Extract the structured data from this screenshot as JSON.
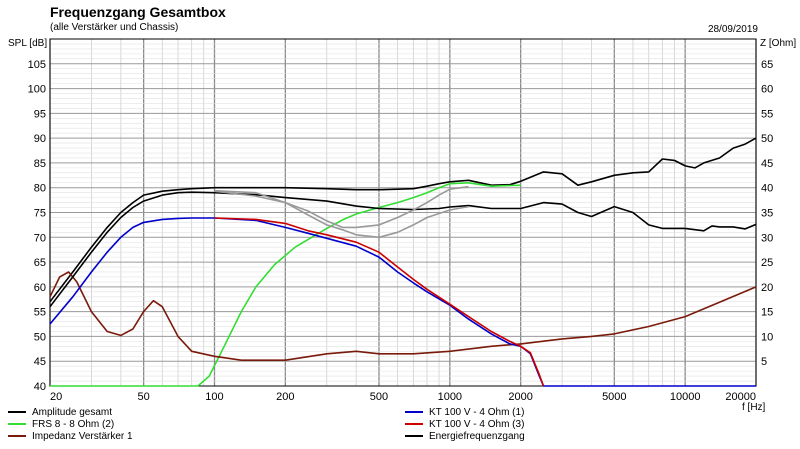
{
  "chart_data": {
    "type": "line",
    "title": "Frequenzgang Gesamtbox",
    "subtitle": "(alle Verstärker und Chassis)",
    "date": "28/09/2019",
    "xlabel": "f [Hz]",
    "ylabel": "SPL [dB]",
    "y2label": "Z [Ohm]",
    "xscale": "log",
    "xlim": [
      20,
      20000
    ],
    "ylim": [
      40,
      110
    ],
    "y2lim": [
      0,
      70
    ],
    "x_tick_labels": [
      {
        "value": 20,
        "label": "20"
      },
      {
        "value": 50,
        "label": "50"
      },
      {
        "value": 100,
        "label": "100"
      },
      {
        "value": 200,
        "label": "200"
      },
      {
        "value": 500,
        "label": "500"
      },
      {
        "value": 1000,
        "label": "1000"
      },
      {
        "value": 2000,
        "label": "2000"
      },
      {
        "value": 5000,
        "label": "5000"
      },
      {
        "value": 10000,
        "label": "10000"
      },
      {
        "value": 20000,
        "label": "20000"
      }
    ],
    "y_ticks": [
      40,
      45,
      50,
      55,
      60,
      65,
      70,
      75,
      80,
      85,
      90,
      95,
      100,
      105
    ],
    "y2_ticks": [
      5,
      10,
      15,
      20,
      25,
      30,
      35,
      40,
      45,
      50,
      55,
      60,
      65
    ],
    "grid": true,
    "legend_position": "bottom",
    "series": [
      {
        "name": "Amplitude gesamt",
        "color": "#000000",
        "axis": "left",
        "points": [
          [
            20,
            57
          ],
          [
            25,
            63
          ],
          [
            30,
            68
          ],
          [
            35,
            72
          ],
          [
            40,
            75
          ],
          [
            45,
            77
          ],
          [
            50,
            78.5
          ],
          [
            60,
            79.3
          ],
          [
            70,
            79.6
          ],
          [
            80,
            79.8
          ],
          [
            100,
            80
          ],
          [
            150,
            80
          ],
          [
            200,
            80
          ],
          [
            300,
            79.8
          ],
          [
            400,
            79.6
          ],
          [
            500,
            79.6
          ],
          [
            600,
            79.7
          ],
          [
            700,
            79.8
          ],
          [
            800,
            80.3
          ],
          [
            900,
            80.8
          ],
          [
            1000,
            81.2
          ],
          [
            1200,
            81.5
          ],
          [
            1500,
            80.5
          ],
          [
            1800,
            80.6
          ],
          [
            2000,
            81.3
          ],
          [
            2500,
            83.2
          ],
          [
            3000,
            82.8
          ],
          [
            3500,
            80.5
          ],
          [
            4000,
            81.2
          ],
          [
            5000,
            82.5
          ],
          [
            6000,
            83
          ],
          [
            7000,
            83.2
          ],
          [
            8000,
            85.8
          ],
          [
            9000,
            85.5
          ],
          [
            10000,
            84.4
          ],
          [
            11000,
            84
          ],
          [
            12000,
            85
          ],
          [
            14000,
            86
          ],
          [
            16000,
            88
          ],
          [
            18000,
            88.8
          ],
          [
            20000,
            90
          ]
        ]
      },
      {
        "name": "FRS 8 - 8 Ohm (2)",
        "color": "#33dd33",
        "axis": "left",
        "points": [
          [
            20,
            40
          ],
          [
            70,
            40
          ],
          [
            85,
            40
          ],
          [
            95,
            42
          ],
          [
            110,
            48
          ],
          [
            130,
            55
          ],
          [
            150,
            60
          ],
          [
            180,
            64.5
          ],
          [
            220,
            68
          ],
          [
            270,
            70.5
          ],
          [
            300,
            71.8
          ],
          [
            350,
            73.5
          ],
          [
            400,
            74.7
          ],
          [
            500,
            76
          ],
          [
            600,
            77
          ],
          [
            700,
            78
          ],
          [
            800,
            79
          ],
          [
            900,
            80
          ],
          [
            1000,
            80.8
          ],
          [
            1200,
            81
          ],
          [
            1500,
            80.3
          ],
          [
            2000,
            80.5
          ]
        ]
      },
      {
        "name": "Impedanz Verstärker 1",
        "color": "#7a1a0a",
        "axis": "right",
        "points": [
          [
            20,
            18
          ],
          [
            22,
            22
          ],
          [
            24,
            23
          ],
          [
            26,
            21
          ],
          [
            30,
            15
          ],
          [
            35,
            11
          ],
          [
            40,
            10.2
          ],
          [
            45,
            11.5
          ],
          [
            50,
            15
          ],
          [
            55,
            17.2
          ],
          [
            60,
            16
          ],
          [
            70,
            10
          ],
          [
            80,
            7
          ],
          [
            100,
            6
          ],
          [
            130,
            5.2
          ],
          [
            200,
            5.2
          ],
          [
            300,
            6.5
          ],
          [
            400,
            7
          ],
          [
            500,
            6.5
          ],
          [
            700,
            6.5
          ],
          [
            1000,
            7
          ],
          [
            1500,
            8
          ],
          [
            2000,
            8.5
          ],
          [
            3000,
            9.5
          ],
          [
            4000,
            10
          ],
          [
            5000,
            10.5
          ],
          [
            7000,
            12
          ],
          [
            10000,
            14
          ],
          [
            15000,
            17.5
          ],
          [
            20000,
            20
          ]
        ]
      },
      {
        "name": "KT 100 V - 4 Ohm (1)",
        "color": "#0000cc",
        "axis": "left",
        "points": [
          [
            20,
            52.5
          ],
          [
            25,
            58
          ],
          [
            30,
            63
          ],
          [
            35,
            67
          ],
          [
            40,
            70
          ],
          [
            45,
            72
          ],
          [
            50,
            73
          ],
          [
            60,
            73.6
          ],
          [
            70,
            73.8
          ],
          [
            80,
            73.9
          ],
          [
            100,
            73.9
          ],
          [
            150,
            73.4
          ],
          [
            200,
            72
          ],
          [
            250,
            70.8
          ],
          [
            300,
            69.8
          ],
          [
            400,
            68.2
          ],
          [
            500,
            66
          ],
          [
            600,
            63
          ],
          [
            700,
            60.8
          ],
          [
            800,
            59
          ],
          [
            1000,
            56.3
          ],
          [
            1200,
            53.5
          ],
          [
            1500,
            50.5
          ],
          [
            1800,
            48.5
          ],
          [
            2000,
            48
          ],
          [
            2200,
            46.5
          ],
          [
            2400,
            42
          ],
          [
            2500,
            40
          ],
          [
            20000,
            40
          ]
        ]
      },
      {
        "name": "KT 100 V - 4 Ohm (3)",
        "color": "#cc0000",
        "axis": "left",
        "points": [
          [
            100,
            73.9
          ],
          [
            150,
            73.6
          ],
          [
            200,
            72.8
          ],
          [
            250,
            71.3
          ],
          [
            300,
            70.5
          ],
          [
            400,
            69
          ],
          [
            500,
            67
          ],
          [
            600,
            64
          ],
          [
            700,
            61.5
          ],
          [
            800,
            59.5
          ],
          [
            1000,
            56.5
          ],
          [
            1200,
            54
          ],
          [
            1500,
            51
          ],
          [
            1800,
            49
          ],
          [
            2000,
            48
          ],
          [
            2200,
            46.7
          ],
          [
            2400,
            42.3
          ],
          [
            2500,
            40
          ]
        ]
      },
      {
        "name": "Energiefrequenzgang",
        "color": "#000000",
        "axis": "left",
        "points": [
          [
            20,
            56
          ],
          [
            25,
            62
          ],
          [
            30,
            67
          ],
          [
            35,
            71
          ],
          [
            40,
            74
          ],
          [
            45,
            76
          ],
          [
            50,
            77.3
          ],
          [
            60,
            78.5
          ],
          [
            70,
            79
          ],
          [
            80,
            79.1
          ],
          [
            100,
            79
          ],
          [
            150,
            78.6
          ],
          [
            200,
            78
          ],
          [
            300,
            77.3
          ],
          [
            400,
            76.3
          ],
          [
            500,
            75.8
          ],
          [
            700,
            75.6
          ],
          [
            900,
            75.8
          ],
          [
            1000,
            76.1
          ],
          [
            1200,
            76.4
          ],
          [
            1500,
            75.8
          ],
          [
            2000,
            75.8
          ],
          [
            2500,
            77
          ],
          [
            3000,
            76.7
          ],
          [
            3500,
            75
          ],
          [
            4000,
            74.2
          ],
          [
            5000,
            76.2
          ],
          [
            6000,
            75
          ],
          [
            7000,
            72.5
          ],
          [
            8000,
            71.8
          ],
          [
            10000,
            71.8
          ],
          [
            12000,
            71.3
          ],
          [
            13000,
            72.3
          ],
          [
            14000,
            72.1
          ],
          [
            16000,
            72.1
          ],
          [
            18000,
            71.7
          ],
          [
            20000,
            72.6
          ]
        ]
      },
      {
        "color": "#999999",
        "axis": "left",
        "points": [
          [
            100,
            79.4
          ],
          [
            150,
            79
          ],
          [
            200,
            77
          ],
          [
            250,
            75.3
          ],
          [
            300,
            73.3
          ],
          [
            350,
            72
          ],
          [
            400,
            72
          ],
          [
            500,
            72.5
          ],
          [
            600,
            74
          ],
          [
            700,
            75.5
          ],
          [
            800,
            77
          ],
          [
            900,
            78.5
          ],
          [
            1000,
            79.7
          ],
          [
            1200,
            80.2
          ]
        ]
      },
      {
        "color": "#999999",
        "axis": "left",
        "points": [
          [
            100,
            79.3
          ],
          [
            150,
            78.3
          ],
          [
            200,
            77
          ],
          [
            250,
            74.5
          ],
          [
            300,
            72.5
          ],
          [
            350,
            71.5
          ],
          [
            400,
            70.5
          ],
          [
            500,
            70
          ],
          [
            600,
            71
          ],
          [
            700,
            72.5
          ],
          [
            800,
            74
          ],
          [
            1000,
            75.5
          ],
          [
            1200,
            76.2
          ]
        ]
      }
    ],
    "legend_left": [
      {
        "label": "Amplitude gesamt",
        "color": "#000000"
      },
      {
        "label": "FRS 8 - 8 Ohm (2)",
        "color": "#33dd33"
      },
      {
        "label": "Impedanz Verstärker 1",
        "color": "#7a1a0a"
      }
    ],
    "legend_right": [
      {
        "label": "KT 100 V - 4 Ohm (1)",
        "color": "#0000cc"
      },
      {
        "label": "KT 100 V - 4 Ohm (3)",
        "color": "#cc0000"
      },
      {
        "label": "Energiefrequenzgang",
        "color": "#000000"
      }
    ]
  }
}
